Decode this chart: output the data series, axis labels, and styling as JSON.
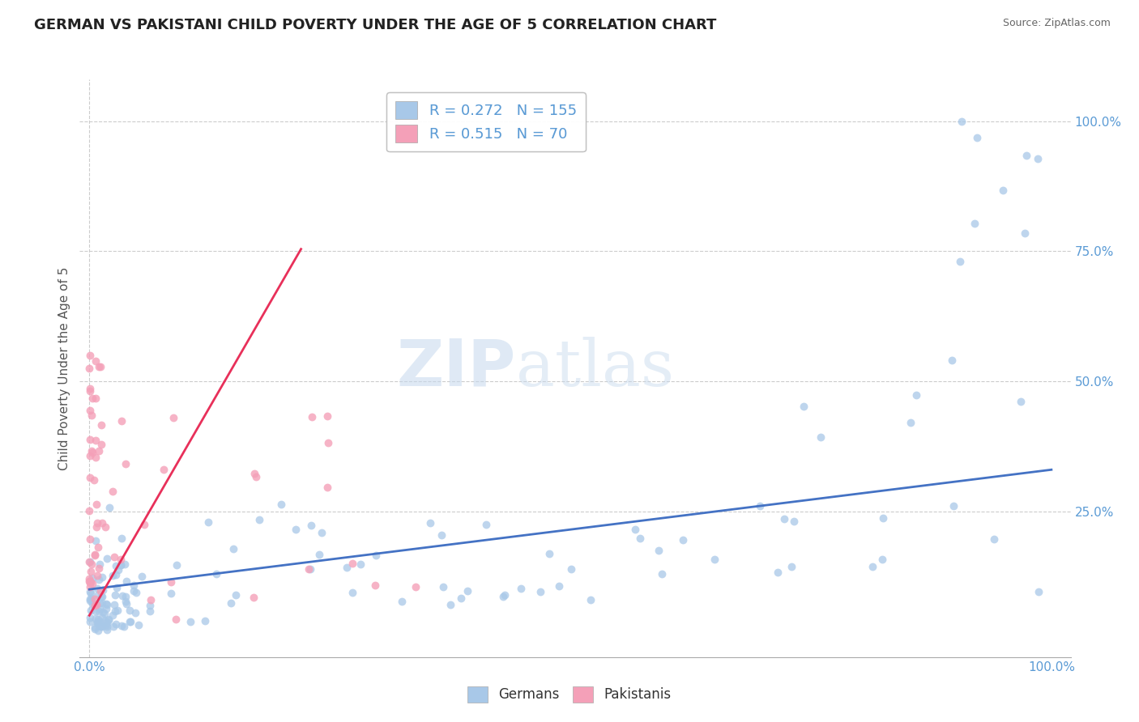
{
  "title": "GERMAN VS PAKISTANI CHILD POVERTY UNDER THE AGE OF 5 CORRELATION CHART",
  "source": "Source: ZipAtlas.com",
  "ylabel": "Child Poverty Under the Age of 5",
  "legend_german_r": "R = 0.272",
  "legend_german_n": "N = 155",
  "legend_pakistani_r": "R = 0.515",
  "legend_pakistani_n": "N = 70",
  "legend_label_german": "Germans",
  "legend_label_pakistani": "Pakistanis",
  "german_color": "#a8c8e8",
  "pakistani_color": "#f4a0b8",
  "german_line_color": "#4472c4",
  "pakistani_line_color": "#e8305a",
  "watermark_zip": "ZIP",
  "watermark_atlas": "atlas",
  "background_color": "#ffffff",
  "grid_color": "#cccccc",
  "tick_color": "#5b9bd5",
  "title_fontsize": 13,
  "axis_label_fontsize": 11,
  "tick_fontsize": 11,
  "legend_fontsize": 13,
  "source_fontsize": 9,
  "xlim": [
    0.0,
    1.0
  ],
  "ylim": [
    0.0,
    1.05
  ],
  "yticks": [
    0.25,
    0.5,
    0.75,
    1.0
  ],
  "ytick_labels": [
    "25.0%",
    "50.0%",
    "75.0%",
    "100.0%"
  ],
  "xtick_labels": [
    "0.0%",
    "100.0%"
  ]
}
